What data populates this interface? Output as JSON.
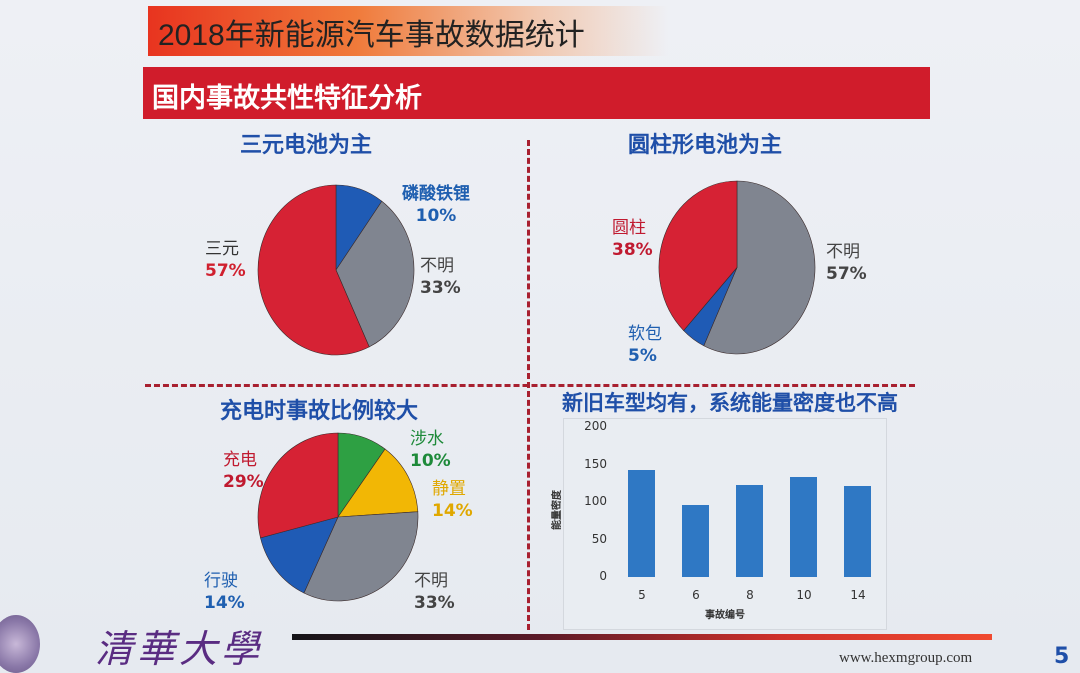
{
  "slide": {
    "title": "2018年新能源汽车事故数据统计",
    "subtitle": "国内事故共性特征分析",
    "footer": {
      "logo_text": "清華大學",
      "url": "www.hexmgroup.com",
      "page_number": "5"
    }
  },
  "panels": {
    "p1": {
      "title": "三元电池为主",
      "labels": [
        {
          "name": "三元",
          "pct": "57%",
          "color": "#d0202e"
        },
        {
          "name": "磷酸铁锂",
          "pct": "10%",
          "color": "#1f5fb0"
        },
        {
          "name": "不明",
          "pct": "33%",
          "color": "#444444"
        }
      ]
    },
    "p2": {
      "title": "圆柱形电池为主",
      "labels": [
        {
          "name": "圆柱",
          "pct": "38%",
          "color": "#c01a30"
        },
        {
          "name": "软包",
          "pct": "5%",
          "color": "#1f5fb0"
        },
        {
          "name": "不明",
          "pct": "57%",
          "color": "#444444"
        }
      ]
    },
    "p3": {
      "title": "充电时事故比例较大",
      "labels": [
        {
          "name": "充电",
          "pct": "29%",
          "color": "#c01a30"
        },
        {
          "name": "涉水",
          "pct": "10%",
          "color": "#1e8a3a"
        },
        {
          "name": "静置",
          "pct": "14%",
          "color": "#e0a800"
        },
        {
          "name": "行驶",
          "pct": "14%",
          "color": "#1f5fb0"
        },
        {
          "name": "不明",
          "pct": "33%",
          "color": "#444444"
        }
      ]
    },
    "p4": {
      "title": "新旧车型均有，系统能量密度也不高"
    }
  },
  "chart_data": [
    {
      "type": "pie",
      "title": "三元电池为主",
      "categories": [
        "磷酸铁锂",
        "不明",
        "三元"
      ],
      "values": [
        10,
        33,
        57
      ],
      "colors": [
        "#1f5bb5",
        "#808590",
        "#d62234"
      ],
      "unit": "%"
    },
    {
      "type": "pie",
      "title": "圆柱形电池为主",
      "categories": [
        "不明",
        "软包",
        "圆柱"
      ],
      "values": [
        57,
        5,
        38
      ],
      "colors": [
        "#808590",
        "#1f5bb5",
        "#d62234"
      ],
      "unit": "%"
    },
    {
      "type": "pie",
      "title": "充电时事故比例较大",
      "categories": [
        "涉水",
        "静置",
        "不明",
        "行驶",
        "充电"
      ],
      "values": [
        10,
        14,
        33,
        14,
        29
      ],
      "colors": [
        "#2ea043",
        "#f2b705",
        "#808590",
        "#1f5bb5",
        "#d62234"
      ],
      "unit": "%"
    },
    {
      "type": "bar",
      "title": "新旧车型均有，系统能量密度也不高",
      "categories": [
        "5",
        "6",
        "8",
        "10",
        "14"
      ],
      "values": [
        143,
        96,
        123,
        133,
        122
      ],
      "xlabel": "事故编号",
      "ylabel": "能量密度",
      "yticks": [
        "0",
        "50",
        "100",
        "150",
        "200"
      ],
      "ylim": [
        0,
        200
      ],
      "color": "#2f78c4"
    }
  ]
}
